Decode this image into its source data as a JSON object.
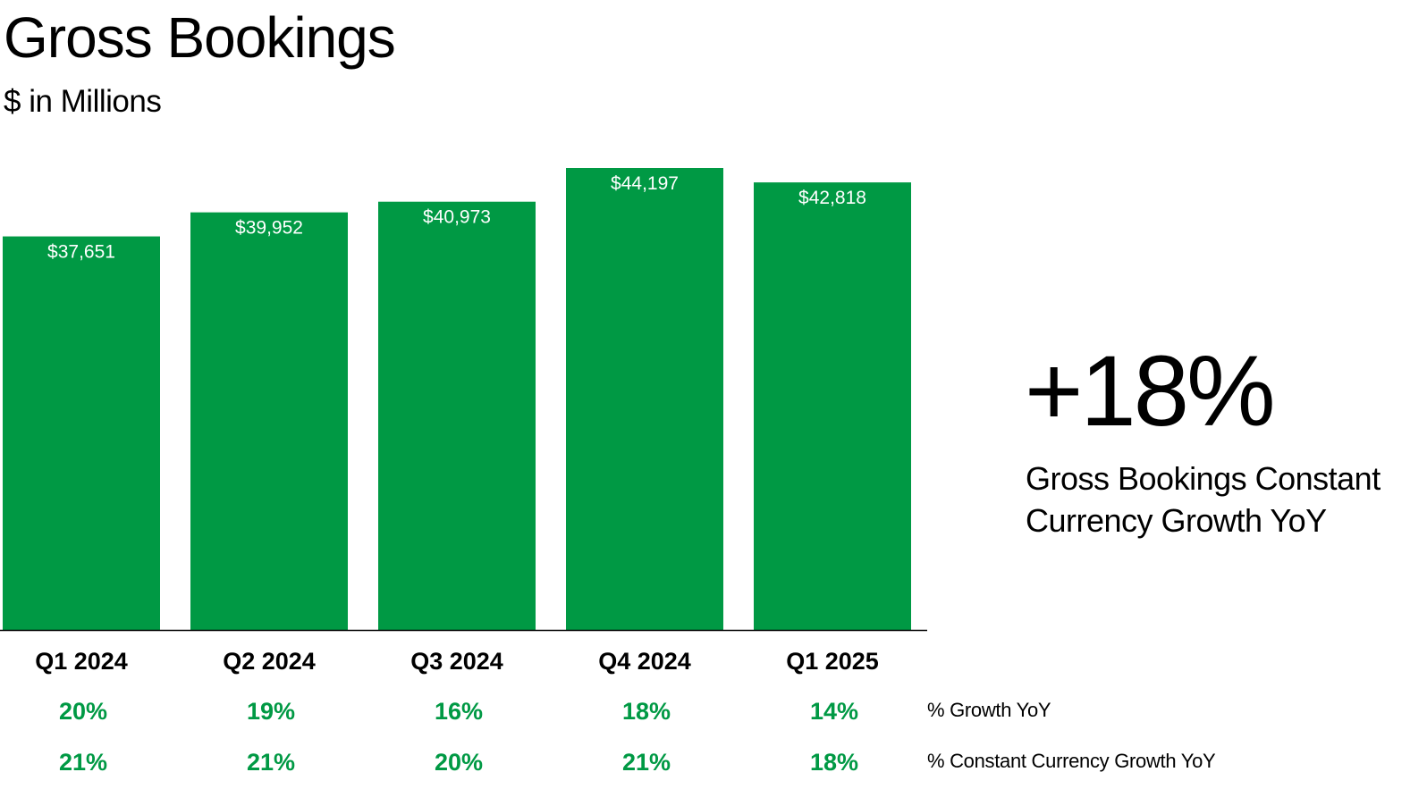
{
  "title": "Gross Bookings",
  "subtitle": "$ in Millions",
  "kpi": {
    "value": "+18%",
    "caption": "Gross Bookings Constant Currency Growth YoY"
  },
  "colors": {
    "bar": "#009944",
    "growth_text": "#009944",
    "axis": "#000000",
    "text": "#000000"
  },
  "chart_data": {
    "type": "bar",
    "title": "Gross Bookings",
    "subtitle": "$ in Millions",
    "categories": [
      "Q1 2024",
      "Q2 2024",
      "Q3 2024",
      "Q4 2024",
      "Q1 2025"
    ],
    "values": [
      37651,
      39952,
      40973,
      44197,
      42818
    ],
    "value_labels": [
      "$37,651",
      "$39,952",
      "$40,973",
      "$44,197",
      "$42,818"
    ],
    "ylim": [
      0,
      44197
    ],
    "grid": false,
    "legend": "none",
    "rows": [
      {
        "label": "% Growth YoY",
        "values": [
          "20%",
          "19%",
          "16%",
          "18%",
          "14%"
        ]
      },
      {
        "label": "% Constant Currency Growth YoY",
        "values": [
          "21%",
          "21%",
          "20%",
          "21%",
          "18%"
        ]
      }
    ]
  }
}
